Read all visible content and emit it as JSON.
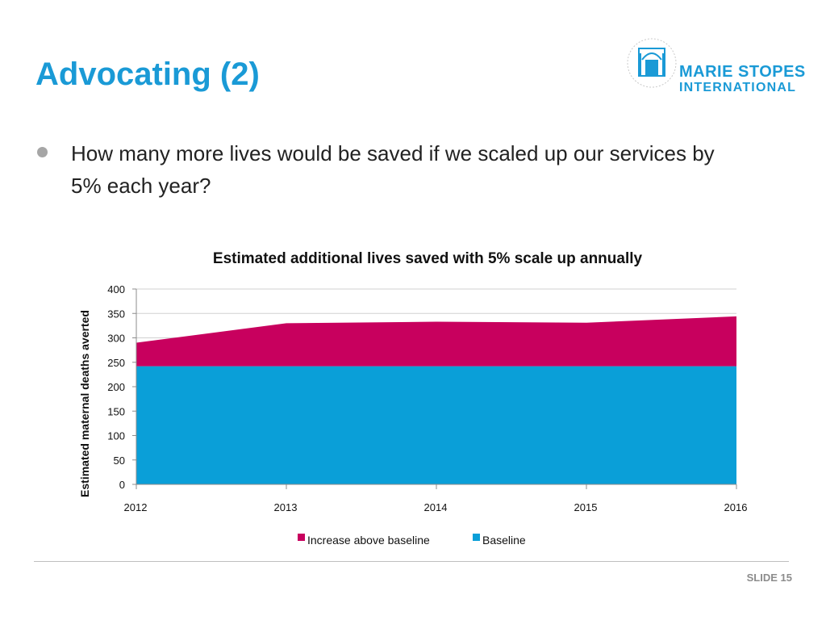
{
  "slide": {
    "title": "Advocating (2)",
    "bullet": "How many more lives would be saved if we scaled up our services by 5% each year?",
    "slide_number": "SLIDE 15"
  },
  "logo": {
    "line1": "MARIE STOPES",
    "line2": "INTERNATIONAL",
    "color": "#1a9ad6"
  },
  "chart_data": {
    "type": "area",
    "stacked": true,
    "title": "Estimated additional lives saved with 5% scale up annually",
    "xlabel": "",
    "ylabel": "Estimated maternal  deaths averted",
    "x": [
      "2012",
      "2013",
      "2014",
      "2015",
      "2016"
    ],
    "ylim": [
      0,
      400
    ],
    "yticks": [
      0,
      50,
      100,
      150,
      200,
      250,
      300,
      350,
      400
    ],
    "grid": true,
    "legend": "bottom",
    "series": [
      {
        "name": "Baseline",
        "color": "#0a9fd8",
        "values": [
          242,
          242,
          242,
          242,
          242
        ]
      },
      {
        "name": "Increase above baseline",
        "color": "#c8005e",
        "values": [
          48,
          88,
          91,
          89,
          102
        ]
      }
    ],
    "legend_order": [
      "Increase above baseline",
      "Baseline"
    ]
  }
}
